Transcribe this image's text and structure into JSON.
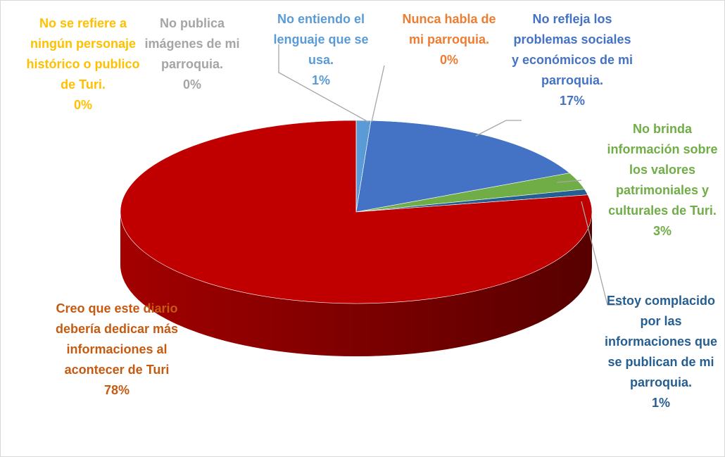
{
  "chart_data": {
    "type": "pie",
    "categories": [
      "No entiendo el lenguaje que se usa.",
      "No publica imágenes de mi parroquia.",
      "Nunca habla de mi parroquia.",
      "No refleja los problemas sociales y económicos de mi parroquia.",
      "No brinda información sobre los valores patrimoniales y culturales de Turi.",
      "Estoy complacido por las informaciones que se publican de mi parroquia.",
      "Creo que este diario debería dedicar más informaciones al acontecer de Turi",
      "No se refiere a ningún personaje histórico o publico de Turi."
    ],
    "values": [
      1,
      0,
      0,
      17,
      3,
      1,
      78,
      0
    ],
    "value_labels": [
      "1%",
      "0%",
      "0%",
      "17%",
      "3%",
      "1%",
      "78%",
      "0%"
    ],
    "colors": [
      "#5b9bd5",
      "#a5a5a5",
      "#ed7d31",
      "#4472c4",
      "#70ad47",
      "#255e91",
      "#c00000",
      "#ffc000"
    ],
    "label_colors": [
      "#5b9bd5",
      "#a5a5a5",
      "#ed7d31",
      "#4472c4",
      "#70ad47",
      "#255e91",
      "#c55a11",
      "#ffc000"
    ]
  }
}
